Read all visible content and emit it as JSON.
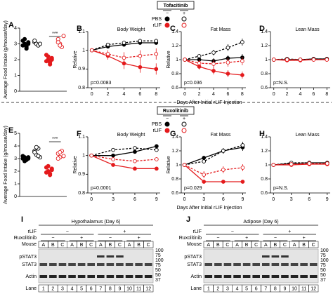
{
  "legends": [
    {
      "title": "Tofacitinib",
      "columns": [
        "−",
        "+"
      ],
      "rows": [
        "PBS",
        "rLIF"
      ]
    },
    {
      "title": "Ruxolitinib",
      "columns": [
        "−",
        "+"
      ],
      "rows": [
        "PBS",
        "rLIF"
      ]
    }
  ],
  "chart_data": [
    {
      "type": "strip",
      "label": "A",
      "y_label": "Average Food Intake (g/mouse/day)",
      "ylim": [
        0,
        4
      ],
      "yticks": [
        0,
        1,
        2,
        3,
        4
      ],
      "annotation": "***",
      "series": [
        {
          "color": "#000000",
          "filled": true,
          "values": [
            3.2,
            3.0,
            2.8,
            3.1,
            2.9,
            3.3,
            2.7,
            3.0
          ]
        },
        {
          "color": "#000000",
          "filled": false,
          "values": [
            3.1,
            3.0,
            2.9,
            3.0,
            3.2
          ]
        },
        {
          "color": "#e41a1c",
          "filled": true,
          "values": [
            2.3,
            2.0,
            1.8,
            2.1,
            1.9,
            2.2,
            1.7,
            2.0
          ]
        },
        {
          "color": "#e41a1c",
          "filled": false,
          "values": [
            3.3,
            3.0,
            2.8,
            3.5,
            3.1,
            2.9
          ]
        }
      ]
    },
    {
      "type": "line",
      "label": "B",
      "title": "Body Weight",
      "y_label": "Relative",
      "x_label": "Days After Initial rLIF Injection",
      "annotation": "p=0.0083",
      "x": [
        0,
        2,
        4,
        6,
        8
      ],
      "xlim": [
        -0.5,
        8.5
      ],
      "xticks": [
        0,
        2,
        4,
        6,
        8
      ],
      "ylim": [
        0.8,
        1.1
      ],
      "yticks": [
        0.8,
        0.9,
        1,
        1.1
      ],
      "series": [
        {
          "color": "#000000",
          "filled": true,
          "dashed": false,
          "values": [
            1,
            1.02,
            1.03,
            1.04,
            1.04
          ],
          "errors": [
            0,
            0.01,
            0.01,
            0.01,
            0.01
          ]
        },
        {
          "color": "#000000",
          "filled": false,
          "dashed": true,
          "values": [
            1,
            1.03,
            1.04,
            1.05,
            1.05
          ],
          "errors": [
            0,
            0.01,
            0.01,
            0.01,
            0.01
          ]
        },
        {
          "color": "#e41a1c",
          "filled": true,
          "dashed": false,
          "values": [
            1,
            0.97,
            0.93,
            0.91,
            0.9
          ],
          "errors": [
            0,
            0.02,
            0.03,
            0.03,
            0.03
          ]
        },
        {
          "color": "#e41a1c",
          "filled": false,
          "dashed": true,
          "values": [
            1,
            0.98,
            0.96,
            0.97,
            0.98
          ],
          "errors": [
            0,
            0.02,
            0.03,
            0.03,
            0.03
          ]
        }
      ]
    },
    {
      "type": "line",
      "label": "C",
      "title": "Fat Mass",
      "y_label": "Relative",
      "annotation": "p=0.036",
      "x": [
        0,
        2,
        4,
        6,
        8
      ],
      "xlim": [
        -0.5,
        8.5
      ],
      "xticks": [
        0,
        2,
        4,
        6,
        8
      ],
      "ylim": [
        0.6,
        1.4
      ],
      "yticks": [
        0.6,
        0.8,
        1,
        1.2,
        1.4
      ],
      "series": [
        {
          "color": "#000000",
          "filled": true,
          "dashed": false,
          "values": [
            1,
            1.0,
            0.98,
            1.02,
            1.03
          ],
          "errors": [
            0,
            0.03,
            0.04,
            0.04,
            0.05
          ]
        },
        {
          "color": "#000000",
          "filled": false,
          "dashed": true,
          "values": [
            1,
            1.05,
            1.1,
            1.17,
            1.25
          ],
          "errors": [
            0,
            0.03,
            0.04,
            0.05,
            0.05
          ]
        },
        {
          "color": "#e41a1c",
          "filled": true,
          "dashed": false,
          "values": [
            1,
            0.9,
            0.84,
            0.8,
            0.78
          ],
          "errors": [
            0,
            0.04,
            0.05,
            0.05,
            0.05
          ]
        },
        {
          "color": "#e41a1c",
          "filled": false,
          "dashed": true,
          "values": [
            1,
            0.95,
            0.94,
            0.96,
            0.98
          ],
          "errors": [
            0,
            0.05,
            0.06,
            0.06,
            0.06
          ]
        }
      ]
    },
    {
      "type": "line",
      "label": "D",
      "title": "Lean Mass",
      "annotation": "p=N.S.",
      "x": [
        0,
        2,
        4,
        6,
        8
      ],
      "xlim": [
        -0.5,
        8.5
      ],
      "xticks": [
        0,
        2,
        4,
        6,
        8
      ],
      "ylim": [
        0.6,
        1.4
      ],
      "yticks": [
        0.6,
        0.8,
        1,
        1.2,
        1.4
      ],
      "series": [
        {
          "color": "#000000",
          "filled": true,
          "dashed": false,
          "values": [
            1,
            1.0,
            1.0,
            1.01,
            1.01
          ],
          "errors": [
            0,
            0.01,
            0.01,
            0.01,
            0.01
          ]
        },
        {
          "color": "#000000",
          "filled": false,
          "dashed": true,
          "values": [
            1,
            1.01,
            1.0,
            1.01,
            1.01
          ],
          "errors": [
            0,
            0.01,
            0.01,
            0.01,
            0.01
          ]
        },
        {
          "color": "#e41a1c",
          "filled": true,
          "dashed": false,
          "values": [
            1,
            0.99,
            0.99,
            1.0,
            1.0
          ],
          "errors": [
            0,
            0.01,
            0.01,
            0.01,
            0.01
          ]
        },
        {
          "color": "#e41a1c",
          "filled": false,
          "dashed": true,
          "values": [
            1,
            1.0,
            1.0,
            1.0,
            1.0
          ],
          "errors": [
            0,
            0.01,
            0.01,
            0.01,
            0.01
          ]
        }
      ]
    },
    {
      "type": "strip",
      "label": "E",
      "y_label": "Average Food Intake (g/mouse/day)",
      "ylim": [
        0,
        5
      ],
      "yticks": [
        0,
        1,
        2,
        3,
        4,
        5
      ],
      "annotation": "***",
      "series": [
        {
          "color": "#000000",
          "filled": true,
          "values": [
            3.0,
            3.1,
            2.9,
            3.0,
            3.2,
            2.8,
            3.0,
            3.1
          ]
        },
        {
          "color": "#000000",
          "filled": false,
          "values": [
            3.6,
            3.3,
            3.8,
            3.1,
            3.5,
            3.9,
            3.2
          ]
        },
        {
          "color": "#e41a1c",
          "filled": true,
          "values": [
            2.3,
            2.0,
            1.8,
            2.2,
            1.9,
            2.4,
            1.7,
            2.1
          ]
        },
        {
          "color": "#e41a1c",
          "filled": false,
          "values": [
            3.4,
            3.1,
            3.6,
            3.2,
            3.0,
            3.5
          ]
        }
      ]
    },
    {
      "type": "line",
      "label": "F",
      "title": "Body Weight",
      "y_label": "Relative",
      "x_label": "Days After Initial rLIF Injection",
      "annotation": "p=0.0001",
      "x": [
        0,
        3,
        6,
        9
      ],
      "xlim": [
        -0.5,
        9.5
      ],
      "xticks": [
        0,
        3,
        6,
        9
      ],
      "ylim": [
        0.8,
        1.1
      ],
      "yticks": [
        0.8,
        0.9,
        1,
        1.1
      ],
      "series": [
        {
          "color": "#000000",
          "filled": true,
          "dashed": false,
          "values": [
            1,
            1.0,
            1.02,
            1.05
          ],
          "errors": [
            0,
            0.01,
            0.01,
            0.01
          ]
        },
        {
          "color": "#000000",
          "filled": false,
          "dashed": true,
          "values": [
            1,
            1.03,
            1.04,
            1.03
          ],
          "errors": [
            0,
            0.01,
            0.01,
            0.01
          ]
        },
        {
          "color": "#e41a1c",
          "filled": true,
          "dashed": false,
          "values": [
            1,
            0.95,
            0.93,
            0.93
          ],
          "errors": [
            0,
            0.01,
            0.01,
            0.01
          ]
        },
        {
          "color": "#e41a1c",
          "filled": false,
          "dashed": true,
          "values": [
            1,
            0.98,
            0.97,
            0.98
          ],
          "errors": [
            0,
            0.01,
            0.01,
            0.01
          ]
        }
      ]
    },
    {
      "type": "line",
      "label": "G",
      "title": "Fat Mass",
      "y_label": "Relative",
      "annotation": "p=0.029",
      "x": [
        0,
        3,
        6,
        9
      ],
      "xlim": [
        -0.5,
        9.5
      ],
      "xticks": [
        0,
        3,
        6,
        9
      ],
      "ylim": [
        0.6,
        1.4
      ],
      "yticks": [
        0.6,
        0.8,
        1,
        1.2,
        1.4
      ],
      "series": [
        {
          "color": "#000000",
          "filled": true,
          "dashed": false,
          "values": [
            1,
            1.1,
            1.2,
            1.25
          ],
          "errors": [
            0,
            0.03,
            0.04,
            0.05
          ]
        },
        {
          "color": "#000000",
          "filled": false,
          "dashed": true,
          "values": [
            1,
            1.05,
            1.2,
            1.28
          ],
          "errors": [
            0,
            0.03,
            0.04,
            0.05
          ]
        },
        {
          "color": "#e41a1c",
          "filled": true,
          "dashed": false,
          "values": [
            1,
            0.76,
            0.76,
            0.76
          ],
          "errors": [
            0,
            0.02,
            0.02,
            0.02
          ]
        },
        {
          "color": "#e41a1c",
          "filled": false,
          "dashed": true,
          "values": [
            1,
            0.86,
            0.93,
            0.96
          ],
          "errors": [
            0,
            0.05,
            0.05,
            0.05
          ]
        }
      ]
    },
    {
      "type": "line",
      "label": "H",
      "title": "Lean Mass",
      "annotation": "p=N.S.",
      "x": [
        0,
        3,
        6,
        9
      ],
      "xlim": [
        -0.5,
        9.5
      ],
      "xticks": [
        0,
        3,
        6,
        9
      ],
      "ylim": [
        0.6,
        1.4
      ],
      "yticks": [
        0.6,
        0.8,
        1,
        1.2,
        1.4
      ],
      "series": [
        {
          "color": "#000000",
          "filled": true,
          "dashed": false,
          "values": [
            1,
            1.02,
            1.03,
            1.03
          ],
          "errors": [
            0,
            0.01,
            0.01,
            0.01
          ]
        },
        {
          "color": "#000000",
          "filled": false,
          "dashed": true,
          "values": [
            1,
            1.03,
            1.03,
            1.02
          ],
          "errors": [
            0,
            0.01,
            0.01,
            0.01
          ]
        },
        {
          "color": "#e41a1c",
          "filled": true,
          "dashed": false,
          "values": [
            1,
            1.0,
            1.01,
            1.01
          ],
          "errors": [
            0,
            0.01,
            0.01,
            0.01
          ]
        },
        {
          "color": "#e41a1c",
          "filled": false,
          "dashed": true,
          "values": [
            1,
            1.01,
            1.02,
            1.02
          ],
          "errors": [
            0,
            0.01,
            0.01,
            0.01
          ]
        }
      ]
    }
  ],
  "blots": [
    {
      "label": "I",
      "title": "Hypothalamus (Day 6)",
      "row_labels": [
        "rLIF",
        "Ruxolitinib",
        "Mouse"
      ],
      "rlif": [
        "−",
        "+"
      ],
      "ruxolitinib": [
        "−",
        "+",
        "−",
        "+"
      ],
      "mouse": [
        "A",
        "B",
        "C",
        "A",
        "B",
        "C",
        "A",
        "B",
        "C",
        "A",
        "B",
        "C"
      ],
      "bands": [
        "pSTAT3",
        "STAT3",
        "Actin"
      ],
      "markers": [
        100,
        75,
        100,
        75,
        50,
        50,
        37
      ],
      "lane_label": "Lane",
      "lanes": [
        1,
        2,
        3,
        4,
        5,
        6,
        7,
        8,
        9,
        10,
        11,
        12
      ]
    },
    {
      "label": "J",
      "title": "Adipose (Day 6)",
      "row_labels": [
        "rLIF",
        "Ruxolitinib",
        "Mouse"
      ],
      "rlif": [
        "−",
        "+"
      ],
      "ruxolitinib": [
        "−",
        "+",
        "−",
        "+"
      ],
      "mouse": [
        "A",
        "B",
        "C",
        "A",
        "B",
        "C",
        "A",
        "B",
        "C",
        "A",
        "B",
        "C"
      ],
      "bands": [
        "pSTAT3",
        "STAT3",
        "Actin"
      ],
      "markers": [
        100,
        75,
        100,
        75,
        50,
        50,
        37
      ],
      "lane_label": "Lane",
      "lanes": [
        1,
        2,
        3,
        4,
        5,
        6,
        7,
        8,
        9,
        10,
        11,
        12
      ]
    }
  ]
}
